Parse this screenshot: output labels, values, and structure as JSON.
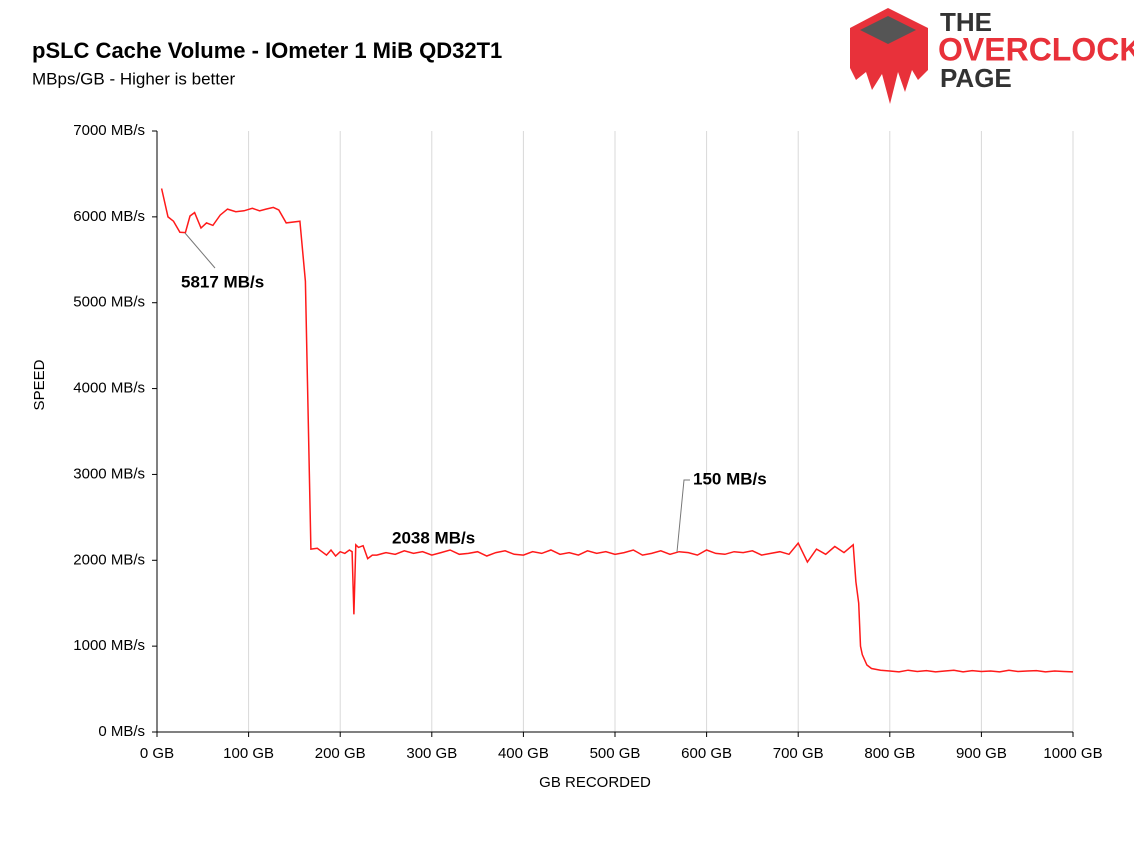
{
  "chart_data": {
    "type": "line",
    "title": "pSLC Cache Volume - IOmeter 1 MiB QD32T1",
    "subtitle": "MBps/GB - Higher is better",
    "x_label": "GB RECORDED",
    "y_label": "SPEED",
    "annotations": [
      "5817 MB/s",
      "2038 MB/s",
      "150 MB/s"
    ],
    "logo": {
      "line1": "THE",
      "line2": "OVERCLOCK",
      "line3": "PAGE"
    },
    "xlim": [
      0,
      1000
    ],
    "ylim": [
      0,
      7000
    ],
    "grid": true,
    "xticks": [
      {
        "value": 0,
        "label": "0 GB"
      },
      {
        "value": 100,
        "label": "100 GB"
      },
      {
        "value": 200,
        "label": "200 GB"
      },
      {
        "value": 300,
        "label": "300 GB"
      },
      {
        "value": 400,
        "label": "400 GB"
      },
      {
        "value": 500,
        "label": "500 GB"
      },
      {
        "value": 600,
        "label": "600 GB"
      },
      {
        "value": 700,
        "label": "700 GB"
      },
      {
        "value": 800,
        "label": "800 GB"
      },
      {
        "value": 900,
        "label": "900 GB"
      },
      {
        "value": 1000,
        "label": "1000 GB"
      }
    ],
    "yticks": [
      {
        "value": 0,
        "label": "0 MB/s"
      },
      {
        "value": 1000,
        "label": "1000 MB/s"
      },
      {
        "value": 2000,
        "label": "2000 MB/s"
      },
      {
        "value": 3000,
        "label": "3000 MB/s"
      },
      {
        "value": 4000,
        "label": "4000 MB/s"
      },
      {
        "value": 5000,
        "label": "5000 MB/s"
      },
      {
        "value": 6000,
        "label": "6000 MB/s"
      },
      {
        "value": 7000,
        "label": "7000 MB/s"
      }
    ],
    "x": [
      5,
      12,
      18,
      25,
      31,
      36,
      41,
      48,
      54,
      61,
      69,
      77,
      86,
      95,
      104,
      112,
      119,
      127,
      133,
      141,
      156,
      162,
      168,
      175,
      180,
      185,
      190,
      195,
      200,
      205,
      210,
      213,
      215,
      217,
      220,
      225,
      230,
      235,
      240,
      250,
      260,
      270,
      280,
      290,
      300,
      310,
      320,
      330,
      340,
      350,
      360,
      370,
      380,
      390,
      400,
      410,
      420,
      430,
      440,
      450,
      460,
      470,
      480,
      490,
      500,
      510,
      520,
      530,
      540,
      550,
      560,
      570,
      580,
      590,
      600,
      610,
      620,
      630,
      640,
      650,
      660,
      670,
      680,
      690,
      700,
      710,
      720,
      730,
      740,
      750,
      760,
      763,
      766,
      768,
      770,
      775,
      780,
      790,
      800,
      810,
      820,
      830,
      840,
      850,
      860,
      870,
      880,
      890,
      900,
      910,
      920,
      930,
      940,
      950,
      960,
      970,
      980,
      990,
      1000
    ],
    "series": [
      {
        "name": "Speed",
        "color": "#ff1a1a",
        "values": [
          6330,
          6000,
          5950,
          5820,
          5817,
          6010,
          6050,
          5870,
          5930,
          5900,
          6020,
          6090,
          6060,
          6070,
          6100,
          6070,
          6090,
          6110,
          6080,
          5930,
          5950,
          5250,
          2130,
          2140,
          2100,
          2060,
          2120,
          2050,
          2100,
          2080,
          2120,
          2100,
          1370,
          2180,
          2150,
          2170,
          2020,
          2060,
          2060,
          2090,
          2070,
          2110,
          2080,
          2100,
          2060,
          2090,
          2120,
          2070,
          2080,
          2100,
          2050,
          2090,
          2110,
          2070,
          2060,
          2100,
          2080,
          2120,
          2070,
          2090,
          2060,
          2110,
          2080,
          2100,
          2070,
          2090,
          2120,
          2060,
          2080,
          2110,
          2070,
          2100,
          2090,
          2060,
          2120,
          2080,
          2070,
          2100,
          2090,
          2110,
          2060,
          2080,
          2100,
          2070,
          2200,
          1980,
          2130,
          2070,
          2160,
          2090,
          2180,
          1750,
          1500,
          1000,
          900,
          780,
          740,
          720,
          710,
          700,
          720,
          705,
          715,
          700,
          710,
          720,
          700,
          715,
          705,
          710,
          700,
          720,
          705,
          710,
          715,
          700,
          710,
          705,
          700
        ]
      }
    ]
  }
}
